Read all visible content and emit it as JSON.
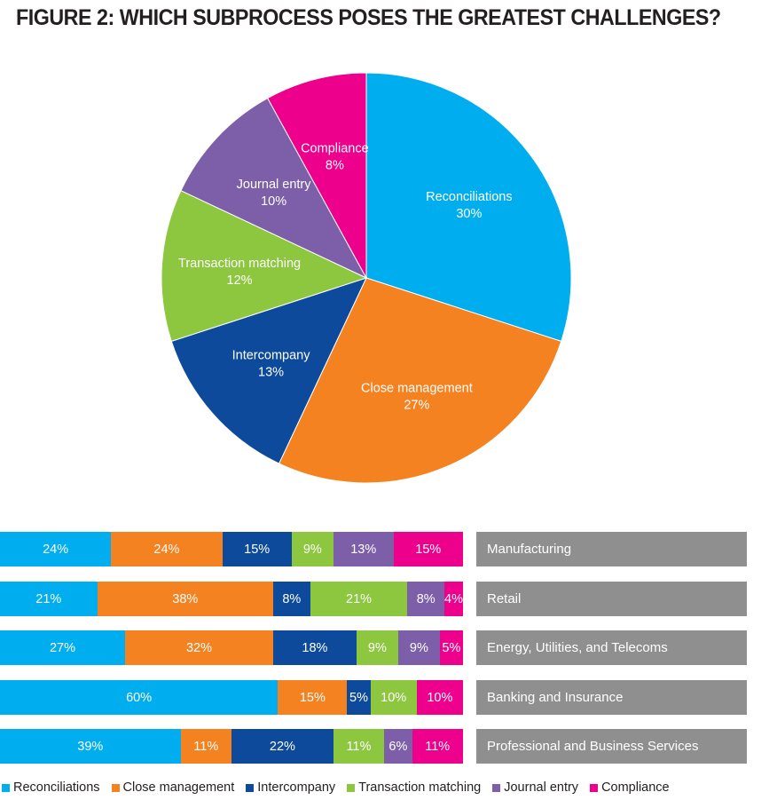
{
  "title": "FIGURE 2: WHICH SUBPROCESS POSES THE GREATEST CHALLENGES?",
  "chart_data": [
    {
      "type": "pie",
      "title": "",
      "slices": [
        {
          "name": "Reconciliations",
          "value": 30,
          "label": "30%",
          "color": "#00aeef"
        },
        {
          "name": "Close management",
          "value": 27,
          "label": "27%",
          "color": "#f58220"
        },
        {
          "name": "Intercompany",
          "value": 13,
          "label": "13%",
          "color": "#0d4a9b"
        },
        {
          "name": "Transaction matching",
          "value": 12,
          "label": "12%",
          "color": "#8dc63f"
        },
        {
          "name": "Journal entry",
          "value": 10,
          "label": "10%",
          "color": "#7d5fa9"
        },
        {
          "name": "Compliance",
          "value": 8,
          "label": "8%",
          "color": "#ec008c"
        }
      ]
    },
    {
      "type": "bar",
      "orientation": "horizontal",
      "stacked": true,
      "categories": [
        "Manufacturing",
        "Retail",
        "Energy, Utilities, and Telecoms",
        "Banking and Insurance",
        "Professional and Business Services"
      ],
      "series": [
        {
          "name": "Reconciliations",
          "color": "#00aeef",
          "values": [
            24,
            21,
            27,
            60,
            39
          ],
          "labels": [
            "24%",
            "21%",
            "27%",
            "60%",
            "39%"
          ]
        },
        {
          "name": "Close management",
          "color": "#f58220",
          "values": [
            24,
            38,
            32,
            15,
            11
          ],
          "labels": [
            "24%",
            "38%",
            "32%",
            "15%",
            "11%"
          ]
        },
        {
          "name": "Intercompany",
          "color": "#0d4a9b",
          "values": [
            15,
            8,
            18,
            5,
            22
          ],
          "labels": [
            "15%",
            "8%",
            "18%",
            "5%",
            "22%"
          ]
        },
        {
          "name": "Transaction matching",
          "color": "#8dc63f",
          "values": [
            9,
            21,
            9,
            10,
            11
          ],
          "labels": [
            "9%",
            "21%",
            "9%",
            "10%",
            "11%"
          ]
        },
        {
          "name": "Journal entry",
          "color": "#7d5fa9",
          "values": [
            13,
            8,
            9,
            0,
            6
          ],
          "labels": [
            "13%",
            "8%",
            "9%",
            "",
            "6%"
          ]
        },
        {
          "name": "Compliance",
          "color": "#ec008c",
          "values": [
            15,
            4,
            5,
            10,
            11
          ],
          "labels": [
            "15%",
            "4%",
            "5%",
            "10%",
            "11%"
          ]
        }
      ],
      "legend": {
        "position": "bottom",
        "items": [
          "Reconciliations",
          "Close management",
          "Intercompany",
          "Transaction matching",
          "Journal entry",
          "Compliance"
        ]
      }
    }
  ]
}
